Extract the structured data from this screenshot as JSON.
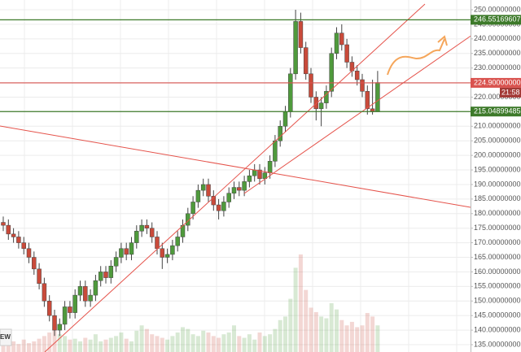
{
  "chart_data": {
    "type": "candlestick",
    "ylim": [
      132.49,
      253.35
    ],
    "yticks": [
      {
        "value": 250,
        "label": "250.00000000"
      },
      {
        "value": 245,
        "label": "245.00000000"
      },
      {
        "value": 240,
        "label": "240.00000000"
      },
      {
        "value": 235,
        "label": "235.00000000"
      },
      {
        "value": 230,
        "label": "230.00000000"
      },
      {
        "value": 225,
        "label": "225.00000000"
      },
      {
        "value": 220,
        "label": "220.00000000"
      },
      {
        "value": 215,
        "label": "215.00000000"
      },
      {
        "value": 210,
        "label": "210.00000000"
      },
      {
        "value": 205,
        "label": "205.00000000"
      },
      {
        "value": 200,
        "label": "200.00000000"
      },
      {
        "value": 195,
        "label": "195.00000000"
      },
      {
        "value": 190,
        "label": "190.00000000"
      },
      {
        "value": 185,
        "label": "185.00000000"
      },
      {
        "value": 180,
        "label": "180.00000000"
      },
      {
        "value": 175,
        "label": "175.00000000"
      },
      {
        "value": 170,
        "label": "170.00000000"
      },
      {
        "value": 165,
        "label": "165.00000000"
      },
      {
        "value": 160,
        "label": "160.00000000"
      },
      {
        "value": 155,
        "label": "155.00000000"
      },
      {
        "value": 150,
        "label": "150.00000000"
      },
      {
        "value": 145,
        "label": "145.00000000"
      },
      {
        "value": 140,
        "label": "140.00000000"
      },
      {
        "value": 135,
        "label": "135.00000000"
      }
    ],
    "grid": true,
    "up_color": "#4f9a3c",
    "down_color": "#c94a3a",
    "candles": [
      [
        177,
        179,
        174,
        176
      ],
      [
        176,
        178,
        171,
        173
      ],
      [
        173,
        175,
        170,
        172
      ],
      [
        172,
        174,
        168,
        170
      ],
      [
        170,
        172,
        166,
        168
      ],
      [
        168,
        170,
        163,
        165
      ],
      [
        165,
        167,
        159,
        161
      ],
      [
        161,
        163,
        154,
        156
      ],
      [
        156,
        158,
        148,
        150
      ],
      [
        150,
        152,
        143,
        145
      ],
      [
        145,
        147,
        138,
        140
      ],
      [
        140,
        144,
        138,
        142
      ],
      [
        142,
        150,
        140,
        148
      ],
      [
        148,
        150,
        144,
        146
      ],
      [
        146,
        154,
        144,
        152
      ],
      [
        152,
        157,
        150,
        155
      ],
      [
        155,
        157,
        148,
        150
      ],
      [
        150,
        154,
        148,
        152
      ],
      [
        152,
        159,
        150,
        157
      ],
      [
        157,
        162,
        155,
        160
      ],
      [
        160,
        162,
        156,
        158
      ],
      [
        158,
        164,
        156,
        162
      ],
      [
        162,
        167,
        160,
        165
      ],
      [
        165,
        170,
        163,
        168
      ],
      [
        168,
        170,
        164,
        166
      ],
      [
        166,
        172,
        164,
        170
      ],
      [
        170,
        176,
        168,
        174
      ],
      [
        174,
        178,
        172,
        176
      ],
      [
        176,
        178,
        173,
        175
      ],
      [
        175,
        177,
        170,
        172
      ],
      [
        172,
        174,
        166,
        168
      ],
      [
        168,
        170,
        161,
        165
      ],
      [
        165,
        168,
        163,
        166
      ],
      [
        166,
        171,
        164,
        169
      ],
      [
        169,
        174,
        167,
        172
      ],
      [
        172,
        178,
        170,
        176
      ],
      [
        176,
        182,
        174,
        180
      ],
      [
        180,
        186,
        178,
        184
      ],
      [
        184,
        190,
        182,
        188
      ],
      [
        188,
        192,
        186,
        190
      ],
      [
        190,
        192,
        184,
        186
      ],
      [
        186,
        188,
        181,
        183
      ],
      [
        183,
        185,
        178,
        181
      ],
      [
        181,
        186,
        179,
        184
      ],
      [
        184,
        189,
        182,
        187
      ],
      [
        187,
        191,
        185,
        189
      ],
      [
        189,
        191,
        186,
        188
      ],
      [
        188,
        193,
        186,
        191
      ],
      [
        191,
        195,
        189,
        193
      ],
      [
        193,
        197,
        191,
        195
      ],
      [
        195,
        197,
        190,
        192
      ],
      [
        192,
        196,
        190,
        194
      ],
      [
        194,
        200,
        192,
        198
      ],
      [
        198,
        207,
        196,
        205
      ],
      [
        205,
        212,
        203,
        210
      ],
      [
        210,
        217,
        208,
        215
      ],
      [
        215,
        230,
        213,
        228
      ],
      [
        228,
        250,
        226,
        246
      ],
      [
        246,
        249,
        235,
        237
      ],
      [
        237,
        239,
        226,
        228
      ],
      [
        228,
        230,
        218,
        220
      ],
      [
        220,
        222,
        212,
        216
      ],
      [
        216,
        220,
        210,
        218
      ],
      [
        218,
        224,
        216,
        222
      ],
      [
        222,
        237,
        220,
        235
      ],
      [
        235,
        244,
        233,
        242
      ],
      [
        242,
        245,
        236,
        238
      ],
      [
        238,
        240,
        230,
        232
      ],
      [
        232,
        234,
        227,
        229
      ],
      [
        229,
        231,
        224,
        226
      ],
      [
        226,
        228,
        220,
        222
      ],
      [
        222,
        224,
        214,
        216
      ],
      [
        216,
        226,
        214,
        215
      ],
      [
        215,
        229,
        215,
        225
      ]
    ],
    "volume": [
      10,
      8,
      12,
      9,
      14,
      10,
      12,
      15,
      18,
      22,
      25,
      20,
      18,
      14,
      15,
      12,
      16,
      14,
      20,
      12,
      14,
      16,
      18,
      22,
      15,
      12,
      24,
      30,
      26,
      20,
      18,
      16,
      14,
      18,
      22,
      28,
      26,
      20,
      18,
      24,
      22,
      18,
      16,
      20,
      22,
      30,
      18,
      16,
      20,
      14,
      22,
      18,
      20,
      26,
      36,
      40,
      60,
      95,
      110,
      70,
      50,
      45,
      40,
      38,
      55,
      48,
      36,
      30,
      34,
      28,
      30,
      44,
      40,
      30
    ],
    "price_lines": [
      {
        "value": 246.55169607,
        "label": "246.55169607",
        "color": "#3d7a2a"
      },
      {
        "value": 224.9,
        "label": "224.90000000",
        "color": "#d9534f"
      },
      {
        "value": 215.04899485,
        "label": "215.04899485",
        "color": "#3d7a2a"
      }
    ],
    "countdown": "21:58",
    "left_label": "EW"
  }
}
